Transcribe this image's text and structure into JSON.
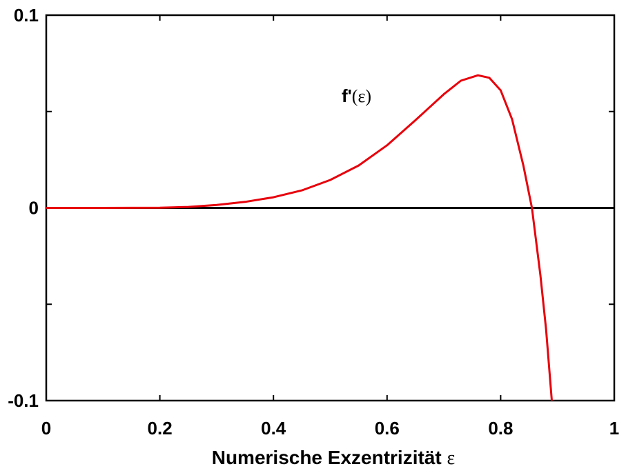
{
  "chart_data": {
    "type": "line",
    "xlabel": "Numerische Exzentrizität",
    "xlabel_symbol": "ε",
    "ylabel": "",
    "xlim": [
      0,
      1
    ],
    "ylim": [
      -0.1,
      0.1
    ],
    "x_ticks": [
      {
        "value": 0,
        "label": "0"
      },
      {
        "value": 0.2,
        "label": "0.2"
      },
      {
        "value": 0.4,
        "label": "0.4"
      },
      {
        "value": 0.6,
        "label": "0.6"
      },
      {
        "value": 0.8,
        "label": "0.8"
      },
      {
        "value": 1,
        "label": "1"
      }
    ],
    "y_ticks": [
      {
        "value": -0.1,
        "label": "-0.1"
      },
      {
        "value": -0.05,
        "label": ""
      },
      {
        "value": 0,
        "label": "0"
      },
      {
        "value": 0.05,
        "label": ""
      },
      {
        "value": 0.1,
        "label": "0.1"
      }
    ],
    "zero_line": true,
    "grid": false,
    "annotation": {
      "text": "f'",
      "symbol": "(ε)",
      "x": 0.52,
      "y": 0.055
    },
    "series": [
      {
        "name": "f'(ε)",
        "color": "#e8000b",
        "x": [
          0,
          0.1,
          0.2,
          0.25,
          0.3,
          0.35,
          0.4,
          0.45,
          0.5,
          0.55,
          0.6,
          0.65,
          0.7,
          0.73,
          0.76,
          0.78,
          0.8,
          0.82,
          0.84,
          0.855,
          0.87,
          0.88,
          0.89
        ],
        "y": [
          0,
          0,
          0.0001,
          0.0005,
          0.0015,
          0.0031,
          0.0055,
          0.0091,
          0.0145,
          0.022,
          0.0325,
          0.0455,
          0.059,
          0.066,
          0.0688,
          0.0675,
          0.061,
          0.046,
          0.022,
          0,
          -0.035,
          -0.063,
          -0.1
        ]
      }
    ]
  }
}
